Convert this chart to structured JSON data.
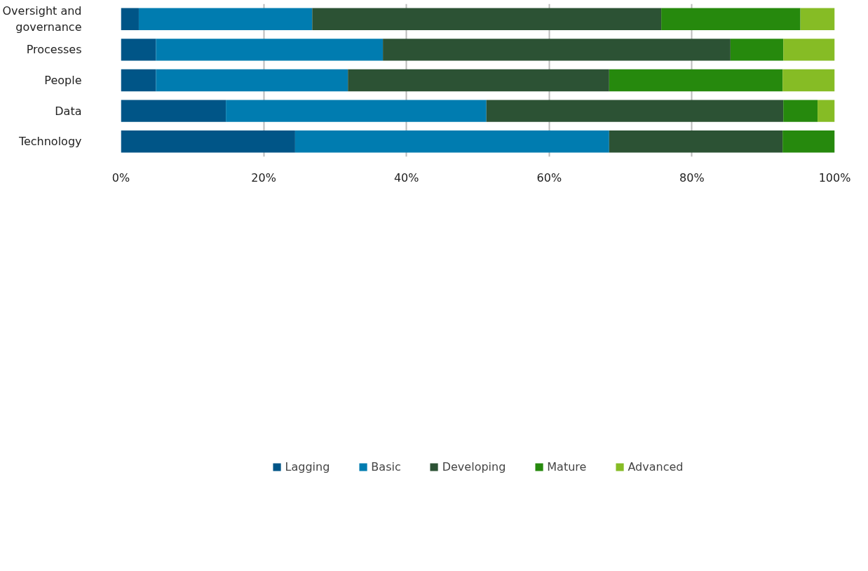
{
  "chart_data": {
    "type": "bar",
    "orientation": "horizontal",
    "stacked": true,
    "categories": [
      "Oversight and governance",
      "Processes",
      "People",
      "Data",
      "Technology"
    ],
    "series": [
      {
        "name": "Lagging",
        "color": "#005587",
        "values": [
          2.5,
          4.9,
          4.9,
          14.7,
          24.4
        ]
      },
      {
        "name": "Basic",
        "color": "#007cb0",
        "values": [
          24.3,
          31.8,
          26.9,
          36.5,
          44.0
        ]
      },
      {
        "name": "Developing",
        "color": "#2c5234",
        "values": [
          48.9,
          48.7,
          36.6,
          41.6,
          24.3
        ]
      },
      {
        "name": "Mature",
        "color": "#26890d",
        "values": [
          19.5,
          7.4,
          24.3,
          4.8,
          7.3
        ]
      },
      {
        "name": "Advanced",
        "color": "#86bc25",
        "values": [
          4.8,
          7.2,
          7.3,
          2.4,
          0
        ]
      }
    ],
    "xlim": [
      0,
      100
    ],
    "xticks": [
      {
        "value": 0,
        "label": "0%"
      },
      {
        "value": 20,
        "label": "20%"
      },
      {
        "value": 40,
        "label": "40%"
      },
      {
        "value": 60,
        "label": "60%"
      },
      {
        "value": 80,
        "label": "80%"
      },
      {
        "value": 100,
        "label": "100%"
      }
    ],
    "grid": "x",
    "legend": "bottom"
  }
}
